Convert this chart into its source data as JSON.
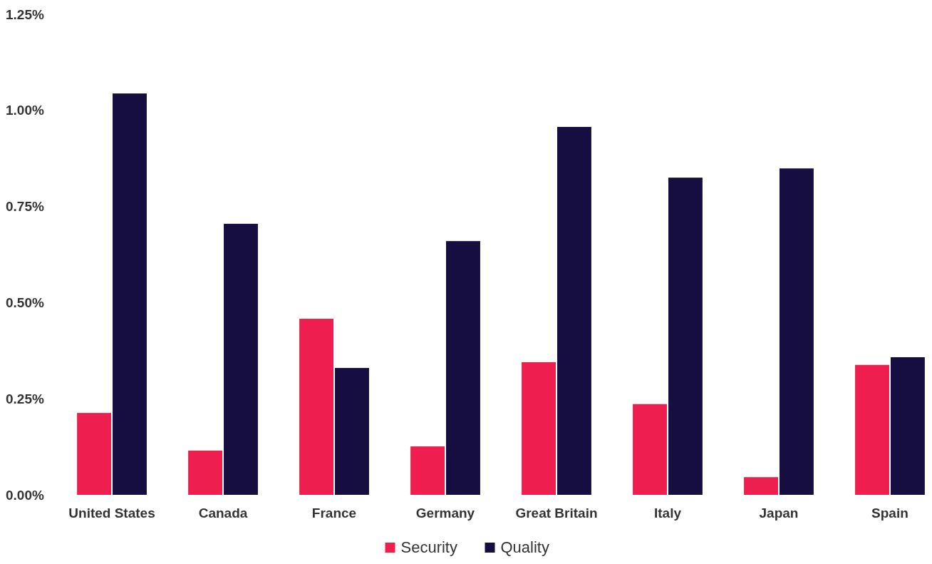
{
  "chart_data": {
    "type": "bar",
    "categories": [
      "United States",
      "Canada",
      "France",
      "Germany",
      "Great Britain",
      "Italy",
      "Japan",
      "Spain"
    ],
    "series": [
      {
        "name": "Security",
        "color": "#ee1f4e",
        "values": [
          0.213,
          0.115,
          0.458,
          0.126,
          0.345,
          0.236,
          0.046,
          0.338
        ]
      },
      {
        "name": "Quality",
        "color": "#160d40",
        "values": [
          1.044,
          0.705,
          0.33,
          0.66,
          0.957,
          0.825,
          0.849,
          0.358
        ]
      }
    ],
    "ylim": [
      0,
      1.25
    ],
    "yticks": [
      {
        "value": 0,
        "label": "0.00%"
      },
      {
        "value": 0.25,
        "label": "0.25%"
      },
      {
        "value": 0.5,
        "label": "0.50%"
      },
      {
        "value": 0.75,
        "label": "0.75%"
      },
      {
        "value": 1,
        "label": "1.00%"
      },
      {
        "value": 1.25,
        "label": "1.25%"
      }
    ],
    "grid": false,
    "legend": "bottom"
  }
}
